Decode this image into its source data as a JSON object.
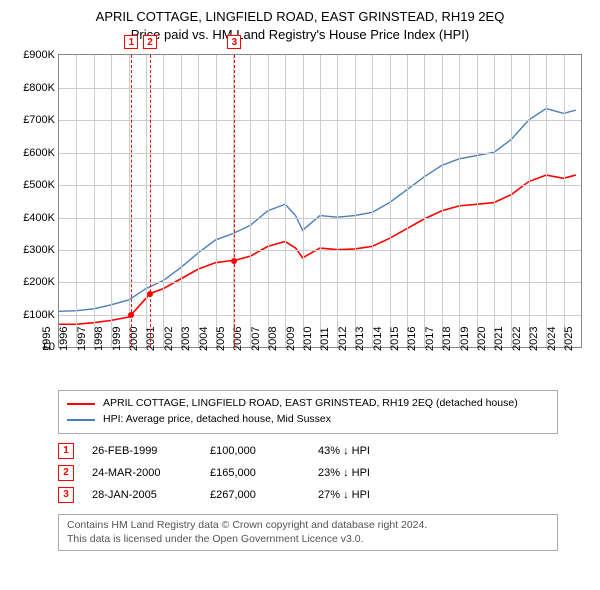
{
  "title": {
    "line1": "APRIL COTTAGE, LINGFIELD ROAD, EAST GRINSTEAD, RH19 2EQ",
    "line2": "Price paid vs. HM Land Registry's House Price Index (HPI)",
    "fontsize": 13,
    "color": "#000000"
  },
  "chart": {
    "type": "line",
    "background_color": "#ffffff",
    "grid_color": "#cccccc",
    "border_color": "#888888",
    "aspect_w": 524,
    "aspect_h": 294,
    "y_axis": {
      "min": 0,
      "max": 900000,
      "step": 100000,
      "labels": [
        "£0",
        "£100K",
        "£200K",
        "£300K",
        "£400K",
        "£500K",
        "£600K",
        "£700K",
        "£800K",
        "£900K"
      ],
      "label_fontsize": 11
    },
    "x_axis": {
      "min": 1995,
      "max": 2025,
      "labels": [
        "1995",
        "1996",
        "1997",
        "1998",
        "1999",
        "2000",
        "2001",
        "2002",
        "2003",
        "2004",
        "2005",
        "2006",
        "2007",
        "2008",
        "2009",
        "2010",
        "2011",
        "2012",
        "2013",
        "2014",
        "2015",
        "2016",
        "2017",
        "2018",
        "2019",
        "2020",
        "2021",
        "2022",
        "2023",
        "2024",
        "2025"
      ],
      "label_fontsize": 11,
      "label_rotation": 90
    },
    "series": [
      {
        "name": "property_price",
        "color": "#ff0000",
        "line_width": 1.6,
        "points": [
          [
            1995.0,
            70000
          ],
          [
            1996.0,
            70000
          ],
          [
            1997.0,
            75000
          ],
          [
            1998.0,
            82000
          ],
          [
            1999.0,
            92000
          ],
          [
            1999.16,
            100000
          ],
          [
            2000.0,
            150000
          ],
          [
            2000.23,
            165000
          ],
          [
            2001.0,
            180000
          ],
          [
            2002.0,
            210000
          ],
          [
            2003.0,
            240000
          ],
          [
            2004.0,
            260000
          ],
          [
            2005.0,
            267000
          ],
          [
            2005.08,
            267000
          ],
          [
            2006.0,
            280000
          ],
          [
            2007.0,
            310000
          ],
          [
            2008.0,
            325000
          ],
          [
            2008.6,
            305000
          ],
          [
            2009.0,
            275000
          ],
          [
            2010.0,
            305000
          ],
          [
            2011.0,
            300000
          ],
          [
            2012.0,
            302000
          ],
          [
            2013.0,
            310000
          ],
          [
            2014.0,
            335000
          ],
          [
            2015.0,
            365000
          ],
          [
            2016.0,
            395000
          ],
          [
            2017.0,
            420000
          ],
          [
            2018.0,
            435000
          ],
          [
            2019.0,
            440000
          ],
          [
            2020.0,
            445000
          ],
          [
            2021.0,
            470000
          ],
          [
            2022.0,
            510000
          ],
          [
            2023.0,
            530000
          ],
          [
            2024.0,
            520000
          ],
          [
            2024.7,
            530000
          ]
        ]
      },
      {
        "name": "hpi",
        "color": "#4a7ebb",
        "line_width": 1.4,
        "points": [
          [
            1995.0,
            110000
          ],
          [
            1996.0,
            112000
          ],
          [
            1997.0,
            118000
          ],
          [
            1998.0,
            130000
          ],
          [
            1999.0,
            145000
          ],
          [
            2000.0,
            180000
          ],
          [
            2001.0,
            205000
          ],
          [
            2002.0,
            245000
          ],
          [
            2003.0,
            290000
          ],
          [
            2004.0,
            330000
          ],
          [
            2005.0,
            350000
          ],
          [
            2006.0,
            375000
          ],
          [
            2007.0,
            420000
          ],
          [
            2008.0,
            440000
          ],
          [
            2008.6,
            405000
          ],
          [
            2009.0,
            360000
          ],
          [
            2010.0,
            405000
          ],
          [
            2011.0,
            400000
          ],
          [
            2012.0,
            405000
          ],
          [
            2013.0,
            415000
          ],
          [
            2014.0,
            445000
          ],
          [
            2015.0,
            485000
          ],
          [
            2016.0,
            525000
          ],
          [
            2017.0,
            560000
          ],
          [
            2018.0,
            580000
          ],
          [
            2019.0,
            590000
          ],
          [
            2020.0,
            600000
          ],
          [
            2021.0,
            640000
          ],
          [
            2022.0,
            700000
          ],
          [
            2023.0,
            735000
          ],
          [
            2024.0,
            720000
          ],
          [
            2024.7,
            730000
          ]
        ]
      }
    ],
    "markers": [
      {
        "id": "1",
        "year": 1999.16,
        "price": 100000
      },
      {
        "id": "2",
        "year": 2000.23,
        "price": 165000
      },
      {
        "id": "3",
        "year": 2005.08,
        "price": 267000
      }
    ],
    "marker_line_color": "#ff0000",
    "marker_dot_color": "#ff0000",
    "marker_box_border": "#ff0000",
    "marker_box_text": "#ff0000"
  },
  "legend": {
    "items": [
      {
        "color": "#ff0000",
        "label": "APRIL COTTAGE, LINGFIELD ROAD, EAST GRINSTEAD, RH19 2EQ (detached house)"
      },
      {
        "color": "#4a7ebb",
        "label": "HPI: Average price, detached house, Mid Sussex"
      }
    ],
    "fontsize": 10.5,
    "border_color": "#aaaaaa"
  },
  "transactions": [
    {
      "id": "1",
      "date": "26-FEB-1999",
      "price": "£100,000",
      "pct": "43% ↓ HPI"
    },
    {
      "id": "2",
      "date": "24-MAR-2000",
      "price": "£165,000",
      "pct": "23% ↓ HPI"
    },
    {
      "id": "3",
      "date": "28-JAN-2005",
      "price": "£267,000",
      "pct": "27% ↓ HPI"
    }
  ],
  "footer": {
    "line1": "Contains HM Land Registry data © Crown copyright and database right 2024.",
    "line2": "This data is licensed under the Open Government Licence v3.0.",
    "border_color": "#aaaaaa",
    "text_color": "#555555"
  }
}
